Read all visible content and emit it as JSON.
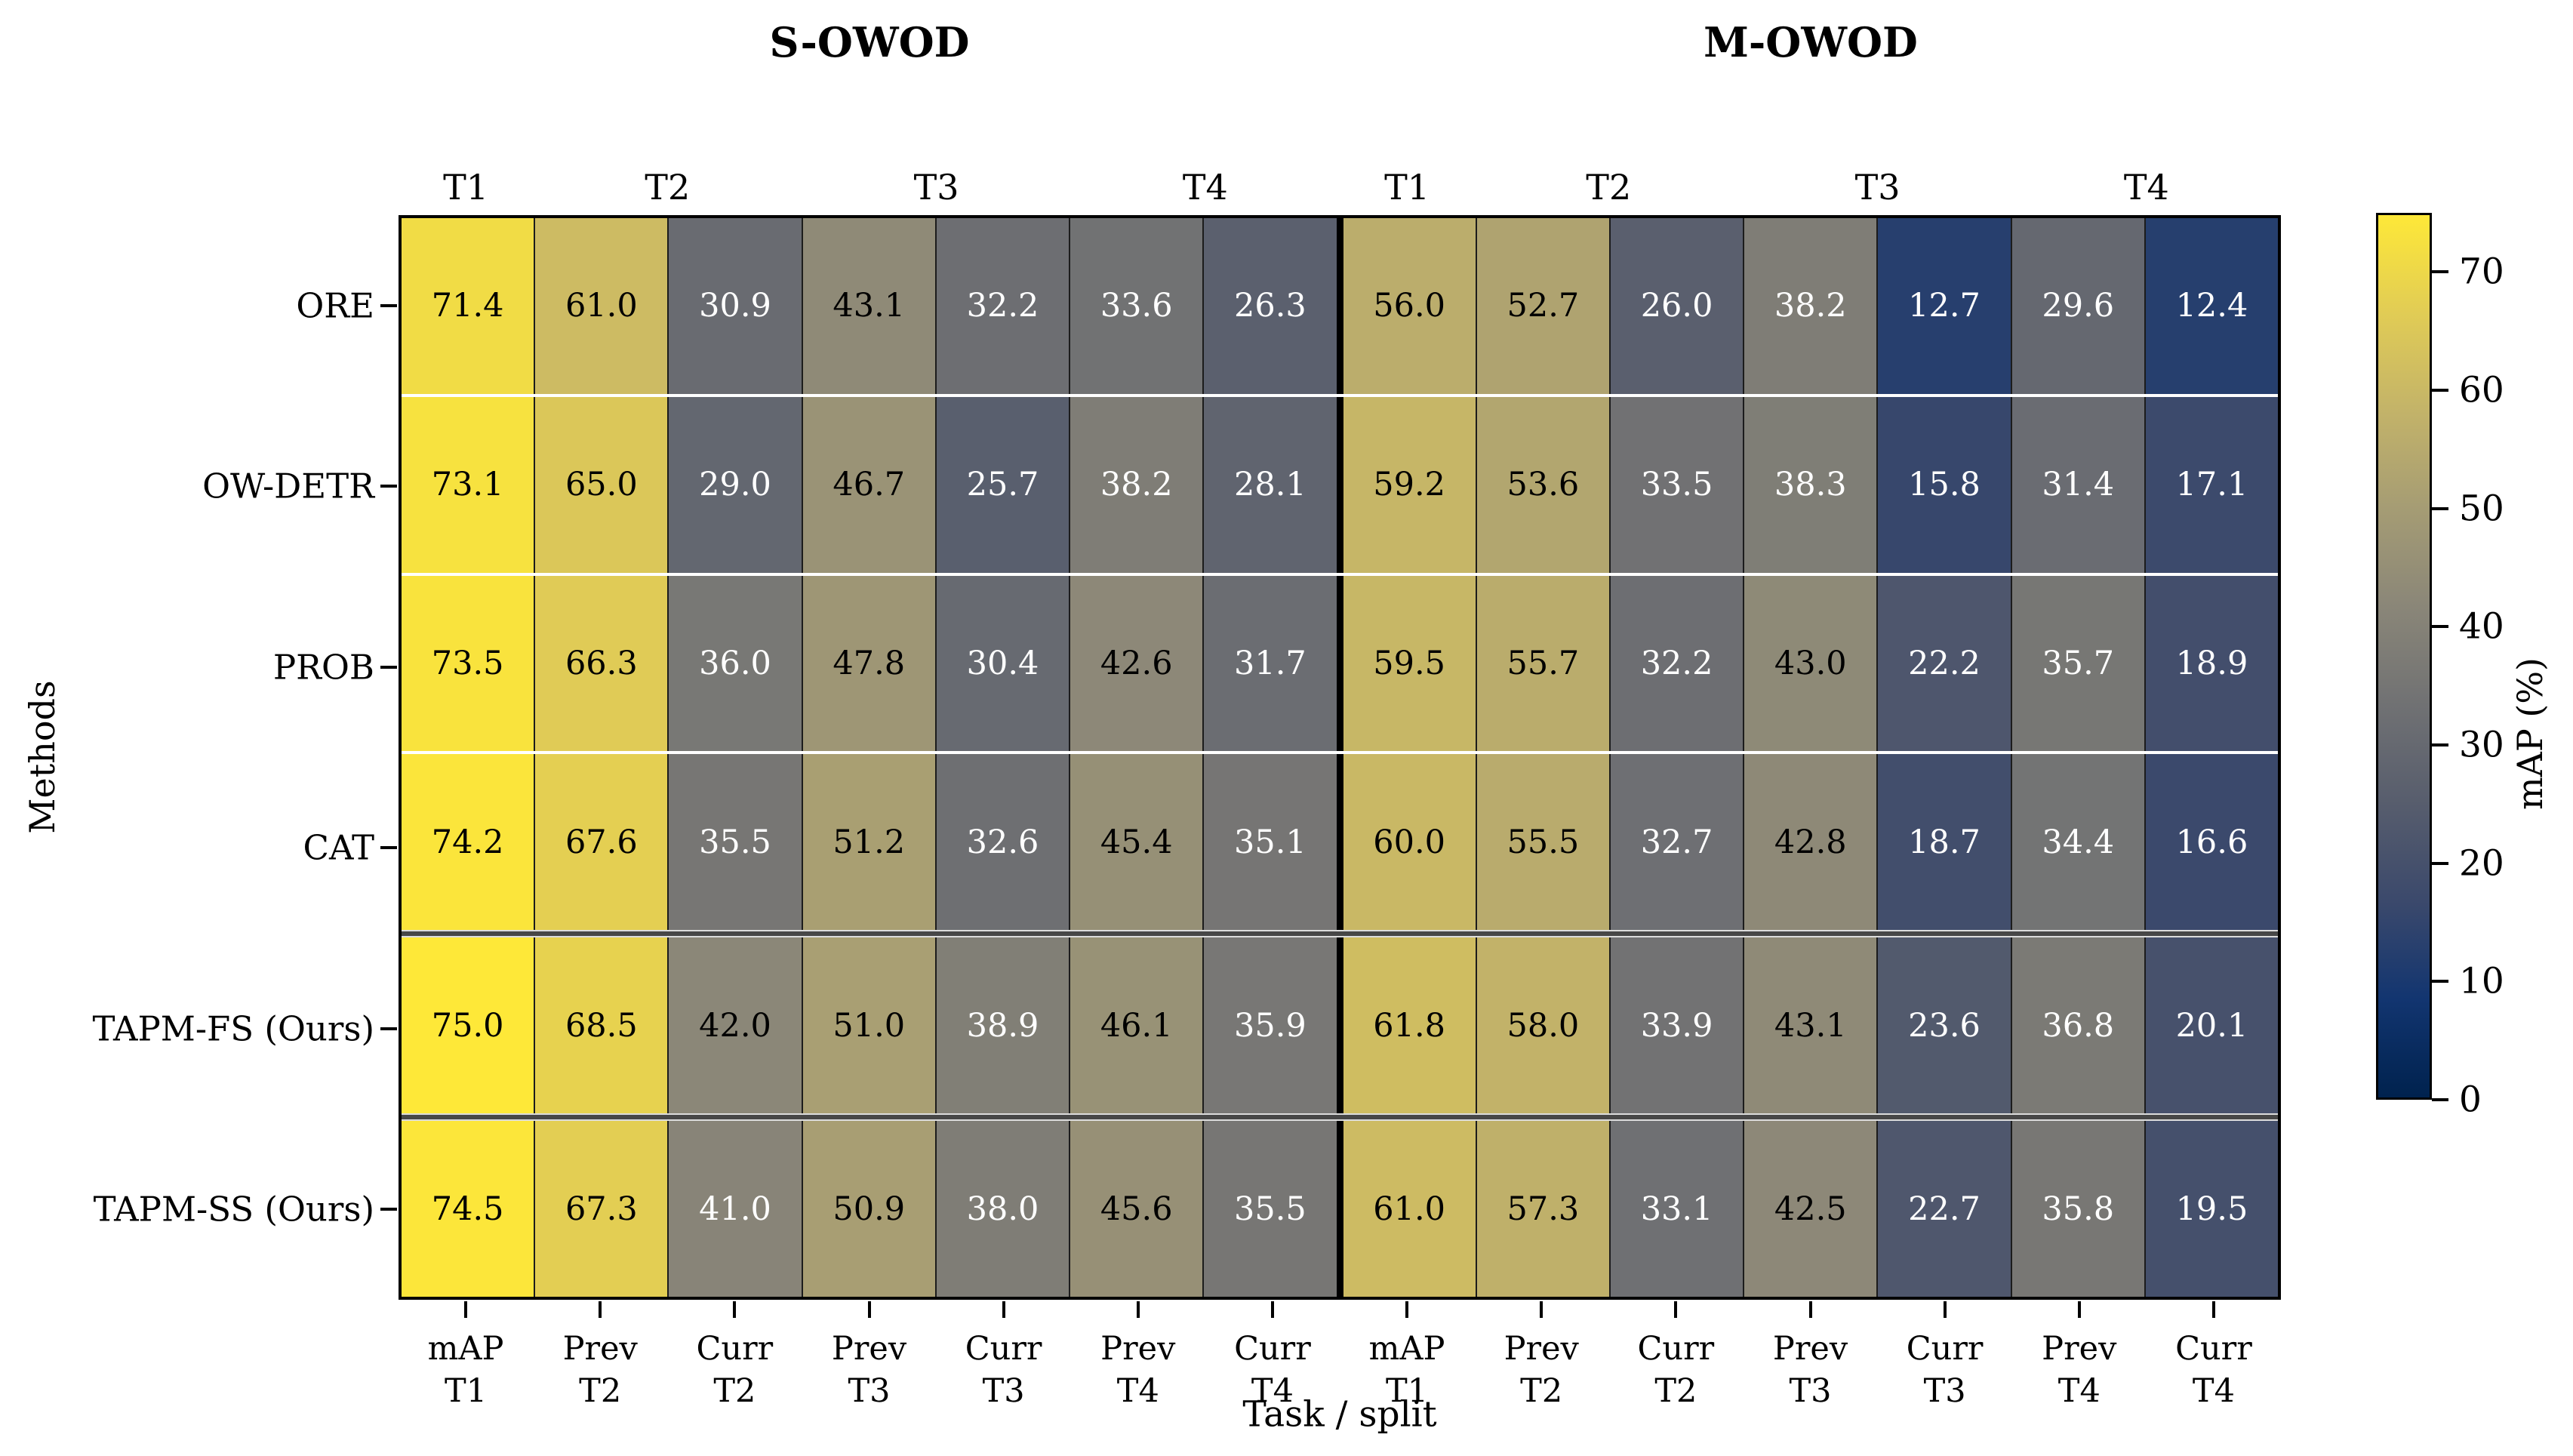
{
  "figure": {
    "background": "#ffffff"
  },
  "titles": {
    "left": "S-OWOD",
    "right": "M-OWOD"
  },
  "axes": {
    "xlabel": "Task / split",
    "ylabel": "Methods"
  },
  "chart_data": {
    "type": "heatmap",
    "subplot_titles": [
      "S-OWOD",
      "M-OWOD"
    ],
    "xlabel": "Task / split",
    "ylabel": "Methods",
    "group_headers": [
      "T1",
      "T2",
      "T3",
      "T4"
    ],
    "rows": [
      "ORE",
      "OW-DETR",
      "PROB",
      "CAT",
      "TAPM-FS (Ours)",
      "TAPM-SS (Ours)"
    ],
    "columns": [
      [
        "mAP",
        "T1"
      ],
      [
        "Prev",
        "T2"
      ],
      [
        "Curr",
        "T2"
      ],
      [
        "Prev",
        "T3"
      ],
      [
        "Curr",
        "T3"
      ],
      [
        "Prev",
        "T4"
      ],
      [
        "Curr",
        "T4"
      ],
      [
        "mAP",
        "T1"
      ],
      [
        "Prev",
        "T2"
      ],
      [
        "Curr",
        "T2"
      ],
      [
        "Prev",
        "T3"
      ],
      [
        "Curr",
        "T3"
      ],
      [
        "Prev",
        "T4"
      ],
      [
        "Curr",
        "T4"
      ]
    ],
    "values": [
      [
        71.4,
        61.0,
        30.9,
        43.1,
        32.2,
        33.6,
        26.3,
        56.0,
        52.7,
        26.0,
        38.2,
        12.7,
        29.6,
        12.4
      ],
      [
        73.1,
        65.0,
        29.0,
        46.7,
        25.7,
        38.2,
        28.1,
        59.2,
        53.6,
        33.5,
        38.3,
        15.8,
        31.4,
        17.1
      ],
      [
        73.5,
        66.3,
        36.0,
        47.8,
        30.4,
        42.6,
        31.7,
        59.5,
        55.7,
        32.2,
        43.0,
        22.2,
        35.7,
        18.9
      ],
      [
        74.2,
        67.6,
        35.5,
        51.2,
        32.6,
        45.4,
        35.1,
        60.0,
        55.5,
        32.7,
        42.8,
        18.7,
        34.4,
        16.6
      ],
      [
        75.0,
        68.5,
        42.0,
        51.0,
        38.9,
        46.1,
        35.9,
        61.8,
        58.0,
        33.9,
        43.1,
        23.6,
        36.8,
        20.1
      ],
      [
        74.5,
        67.3,
        41.0,
        50.9,
        38.0,
        45.6,
        35.5,
        61.0,
        57.3,
        33.1,
        42.5,
        22.7,
        35.8,
        19.5
      ]
    ],
    "highlighted_rows": [
      4,
      5
    ],
    "group_split_after_column": 6,
    "colorbar": {
      "label": "mAP (%)",
      "ticks": [
        0,
        10,
        20,
        30,
        40,
        50,
        60,
        70
      ],
      "vmin": 0,
      "vmax": 75,
      "colormap": "cividis"
    }
  },
  "colors": {
    "cividis_stops": [
      "#00224e",
      "#123570",
      "#3b496c",
      "#575d6d",
      "#707173",
      "#8a8678",
      "#a59c74",
      "#c3b369",
      "#e1cc55",
      "#fee838"
    ],
    "cell_text_dark": "#000000",
    "cell_text_light": "#ffffff",
    "dark_text_value_threshold": 41.5,
    "spine": "#000000",
    "group_separator": "#000000",
    "row_separator_light": "#ffffff",
    "row_separator_dark": "#474747"
  }
}
